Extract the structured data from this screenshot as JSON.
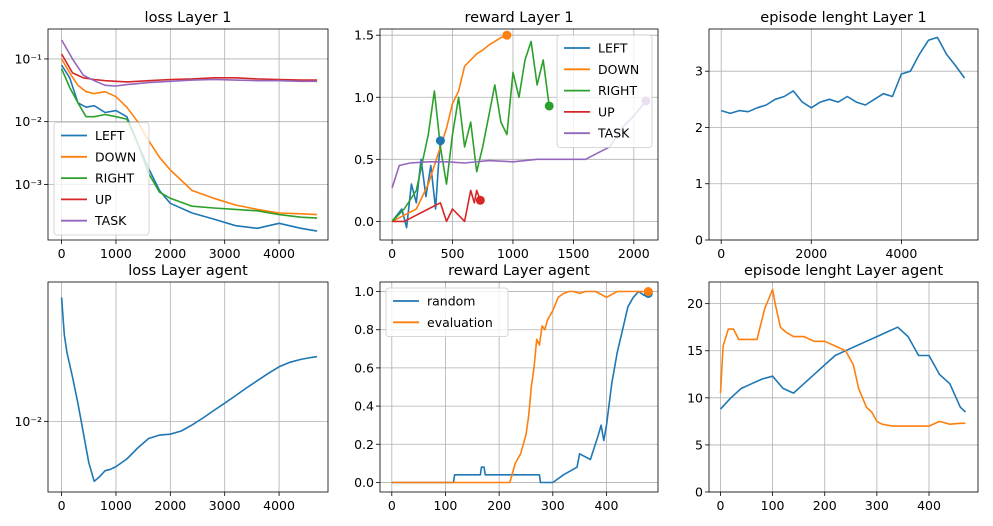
{
  "chart_data": [
    {
      "type": "line",
      "title": "loss Layer 1",
      "xlabel": "",
      "ylabel": "",
      "yscale": "log",
      "xlim": [
        -250,
        4900
      ],
      "ylim": [
        0.00013,
        0.3
      ],
      "xticks": [
        0,
        1000,
        2000,
        3000,
        4000
      ],
      "yticks": [
        0.001,
        0.01,
        0.1
      ],
      "ytick_labels": [
        "10⁻³",
        "10⁻²",
        "10⁻¹"
      ],
      "grid": true,
      "legend": "lower-left",
      "series": [
        {
          "name": "LEFT",
          "color": "#1f77b4",
          "x": [
            0,
            150,
            300,
            450,
            600,
            800,
            1000,
            1200,
            1400,
            1600,
            1800,
            2000,
            2400,
            2800,
            3200,
            3600,
            4000,
            4400,
            4700
          ],
          "y": [
            0.08,
            0.05,
            0.02,
            0.017,
            0.018,
            0.014,
            0.015,
            0.012,
            0.0045,
            0.0018,
            0.0008,
            0.0005,
            0.00035,
            0.00028,
            0.00022,
            0.0002,
            0.00024,
            0.0002,
            0.00018
          ]
        },
        {
          "name": "DOWN",
          "color": "#ff7f0e",
          "x": [
            0,
            150,
            300,
            450,
            600,
            800,
            1000,
            1200,
            1400,
            1600,
            1800,
            2000,
            2400,
            2800,
            3200,
            3600,
            4000,
            4400,
            4700
          ],
          "y": [
            0.1,
            0.06,
            0.038,
            0.03,
            0.028,
            0.03,
            0.025,
            0.017,
            0.01,
            0.005,
            0.0027,
            0.0017,
            0.0008,
            0.0006,
            0.00047,
            0.0004,
            0.00035,
            0.00034,
            0.00033
          ]
        },
        {
          "name": "RIGHT",
          "color": "#2ca02c",
          "x": [
            0,
            150,
            300,
            450,
            600,
            800,
            1000,
            1200,
            1400,
            1600,
            1800,
            2000,
            2400,
            2800,
            3200,
            3600,
            4000,
            4400,
            4700
          ],
          "y": [
            0.07,
            0.035,
            0.02,
            0.012,
            0.012,
            0.013,
            0.012,
            0.011,
            0.0045,
            0.0015,
            0.00075,
            0.0006,
            0.00045,
            0.00042,
            0.0004,
            0.00038,
            0.00033,
            0.0003,
            0.00029
          ]
        },
        {
          "name": "UP",
          "color": "#d62728",
          "x": [
            0,
            200,
            400,
            600,
            800,
            1000,
            1200,
            1600,
            2000,
            2400,
            2800,
            3200,
            3600,
            4000,
            4400,
            4700
          ],
          "y": [
            0.12,
            0.06,
            0.05,
            0.047,
            0.045,
            0.044,
            0.043,
            0.045,
            0.047,
            0.048,
            0.05,
            0.05,
            0.048,
            0.047,
            0.046,
            0.046
          ]
        },
        {
          "name": "TASK",
          "color": "#9467bd",
          "x": [
            0,
            200,
            400,
            600,
            800,
            1000,
            1200,
            1600,
            2000,
            2400,
            2800,
            3200,
            3600,
            4000,
            4400,
            4700
          ],
          "y": [
            0.2,
            0.1,
            0.055,
            0.045,
            0.038,
            0.037,
            0.039,
            0.042,
            0.044,
            0.046,
            0.047,
            0.046,
            0.045,
            0.045,
            0.044,
            0.044
          ]
        }
      ]
    },
    {
      "type": "line",
      "title": "reward Layer 1",
      "xlabel": "",
      "ylabel": "",
      "xlim": [
        -100,
        2200
      ],
      "ylim": [
        -0.15,
        1.55
      ],
      "xticks": [
        0,
        500,
        1000,
        1500,
        2000
      ],
      "yticks": [
        0.0,
        0.5,
        1.0,
        1.5
      ],
      "ytick_labels": [
        "0.0",
        "0.5",
        "1.0",
        "1.5"
      ],
      "grid": true,
      "legend": "top-right",
      "series": [
        {
          "name": "LEFT",
          "color": "#1f77b4",
          "x": [
            0,
            40,
            80,
            120,
            160,
            200,
            240,
            280,
            320,
            360,
            380,
            400
          ],
          "y": [
            0.0,
            0.05,
            0.1,
            -0.05,
            0.3,
            0.15,
            0.5,
            0.2,
            0.45,
            0.1,
            0.4,
            0.65
          ],
          "end_marker": true
        },
        {
          "name": "DOWN",
          "color": "#ff7f0e",
          "x": [
            0,
            100,
            200,
            300,
            400,
            450,
            500,
            550,
            600,
            650,
            700,
            750,
            800,
            850,
            900,
            950
          ],
          "y": [
            0.0,
            0.05,
            0.1,
            0.3,
            0.6,
            0.75,
            0.95,
            1.05,
            1.25,
            1.3,
            1.35,
            1.38,
            1.42,
            1.45,
            1.48,
            1.5
          ],
          "end_marker": true
        },
        {
          "name": "RIGHT",
          "color": "#2ca02c",
          "x": [
            0,
            100,
            200,
            300,
            350,
            400,
            450,
            500,
            550,
            600,
            650,
            700,
            750,
            800,
            850,
            900,
            950,
            1000,
            1050,
            1100,
            1150,
            1200,
            1250,
            1300
          ],
          "y": [
            0.0,
            0.1,
            0.25,
            0.7,
            1.05,
            0.6,
            0.3,
            0.7,
            1.0,
            0.6,
            0.8,
            0.4,
            0.6,
            0.85,
            1.1,
            0.8,
            0.7,
            1.2,
            1.0,
            1.3,
            1.45,
            1.1,
            1.3,
            0.93
          ],
          "end_marker": true
        },
        {
          "name": "UP",
          "color": "#d62728",
          "x": [
            0,
            100,
            200,
            300,
            400,
            450,
            500,
            550,
            600,
            650,
            680,
            700,
            730
          ],
          "y": [
            0.0,
            0.0,
            0.05,
            0.1,
            0.15,
            0.0,
            0.1,
            0.05,
            0.0,
            0.25,
            0.15,
            0.25,
            0.17
          ],
          "end_marker": true
        },
        {
          "name": "TASK",
          "color": "#9467bd",
          "x": [
            0,
            60,
            150,
            300,
            450,
            600,
            800,
            1000,
            1200,
            1400,
            1600,
            1700,
            1800,
            1900,
            2000,
            2100
          ],
          "y": [
            0.27,
            0.45,
            0.47,
            0.48,
            0.48,
            0.47,
            0.49,
            0.48,
            0.5,
            0.5,
            0.5,
            0.55,
            0.6,
            0.75,
            0.85,
            0.97
          ],
          "end_marker": true
        }
      ]
    },
    {
      "type": "line",
      "title": "episode lenght Layer 1",
      "xlabel": "",
      "ylabel": "",
      "xlim": [
        -270,
        5700
      ],
      "ylim": [
        0,
        3.75
      ],
      "xticks": [
        0,
        2000,
        4000
      ],
      "yticks": [
        0,
        1,
        2,
        3
      ],
      "ytick_labels": [
        "0",
        "1",
        "2",
        "3"
      ],
      "grid": true,
      "series": [
        {
          "name": "",
          "color": "#1f77b4",
          "x": [
            0,
            200,
            400,
            600,
            800,
            1000,
            1200,
            1400,
            1600,
            1800,
            2000,
            2200,
            2400,
            2600,
            2800,
            3000,
            3200,
            3400,
            3600,
            3800,
            4000,
            4200,
            4400,
            4600,
            4800,
            5000,
            5200,
            5400
          ],
          "y": [
            2.3,
            2.25,
            2.3,
            2.28,
            2.35,
            2.4,
            2.5,
            2.55,
            2.65,
            2.45,
            2.35,
            2.45,
            2.5,
            2.45,
            2.55,
            2.45,
            2.4,
            2.5,
            2.6,
            2.55,
            2.95,
            3.0,
            3.3,
            3.55,
            3.6,
            3.3,
            3.1,
            2.88
          ]
        }
      ]
    },
    {
      "type": "line",
      "title": "loss Layer agent",
      "xlabel": "",
      "ylabel": "",
      "yscale": "log",
      "xlim": [
        -250,
        4900
      ],
      "ylim": [
        0.0036,
        0.075
      ],
      "xticks": [
        0,
        1000,
        2000,
        3000,
        4000
      ],
      "yticks": [
        0.01
      ],
      "ytick_labels": [
        "10⁻²"
      ],
      "grid": true,
      "series": [
        {
          "name": "",
          "color": "#1f77b4",
          "x": [
            0,
            50,
            100,
            200,
            300,
            400,
            500,
            600,
            700,
            800,
            900,
            1000,
            1200,
            1400,
            1600,
            1800,
            2000,
            2200,
            2400,
            2600,
            2800,
            3000,
            3200,
            3400,
            3600,
            3800,
            4000,
            4200,
            4400,
            4600,
            4700
          ],
          "y": [
            0.06,
            0.035,
            0.027,
            0.019,
            0.013,
            0.0085,
            0.0055,
            0.0042,
            0.0045,
            0.0049,
            0.005,
            0.0052,
            0.0058,
            0.0068,
            0.0078,
            0.0082,
            0.0083,
            0.0087,
            0.0095,
            0.0105,
            0.0117,
            0.013,
            0.0145,
            0.0162,
            0.018,
            0.02,
            0.022,
            0.0235,
            0.0245,
            0.0252,
            0.0255
          ]
        }
      ]
    },
    {
      "type": "line",
      "title": "reward Layer agent",
      "xlabel": "",
      "ylabel": "",
      "xlim": [
        -22,
        496
      ],
      "ylim": [
        -0.05,
        1.05
      ],
      "xticks": [
        0,
        100,
        200,
        300,
        400
      ],
      "yticks": [
        0.0,
        0.2,
        0.4,
        0.6,
        0.8,
        1.0
      ],
      "ytick_labels": [
        "0.0",
        "0.2",
        "0.4",
        "0.6",
        "0.8",
        "1.0"
      ],
      "grid": true,
      "legend": "top-left",
      "series": [
        {
          "name": "random",
          "color": "#1f77b4",
          "x": [
            0,
            115,
            117,
            140,
            165,
            167,
            172,
            174,
            200,
            275,
            277,
            300,
            320,
            345,
            350,
            370,
            385,
            390,
            395,
            400,
            410,
            420,
            430,
            440,
            450,
            460,
            470,
            478
          ],
          "y": [
            0.0,
            0.0,
            0.04,
            0.04,
            0.04,
            0.08,
            0.08,
            0.04,
            0.04,
            0.04,
            0.0,
            0.0,
            0.04,
            0.08,
            0.15,
            0.12,
            0.25,
            0.3,
            0.22,
            0.3,
            0.52,
            0.68,
            0.8,
            0.92,
            0.97,
            1.0,
            0.98,
            0.99
          ],
          "end_marker": true
        },
        {
          "name": "evaluation",
          "color": "#ff7f0e",
          "x": [
            0,
            220,
            230,
            240,
            250,
            255,
            260,
            265,
            270,
            275,
            280,
            285,
            290,
            300,
            310,
            320,
            330,
            340,
            350,
            360,
            380,
            400,
            420,
            440,
            460,
            478
          ],
          "y": [
            0.0,
            0.0,
            0.1,
            0.15,
            0.25,
            0.35,
            0.5,
            0.6,
            0.75,
            0.72,
            0.82,
            0.8,
            0.85,
            0.9,
            0.97,
            0.99,
            1.0,
            1.0,
            0.99,
            1.0,
            1.0,
            0.97,
            1.0,
            1.0,
            1.0,
            1.0
          ],
          "end_marker": true
        }
      ]
    },
    {
      "type": "line",
      "title": "episode lenght Layer agent",
      "xlabel": "",
      "ylabel": "",
      "xlim": [
        -22,
        494
      ],
      "ylim": [
        0,
        22.3
      ],
      "xticks": [
        0,
        100,
        200,
        300,
        400
      ],
      "yticks": [
        0,
        5,
        10,
        15,
        20
      ],
      "ytick_labels": [
        "0",
        "5",
        "10",
        "15",
        "20"
      ],
      "grid": true,
      "series": [
        {
          "name": "",
          "color": "#1f77b4",
          "x": [
            0,
            20,
            40,
            60,
            80,
            100,
            120,
            140,
            160,
            180,
            200,
            220,
            240,
            260,
            280,
            300,
            320,
            340,
            360,
            380,
            400,
            420,
            440,
            460,
            470
          ],
          "y": [
            8.8,
            10.0,
            11.0,
            11.5,
            12.0,
            12.3,
            11.0,
            10.5,
            11.5,
            12.5,
            13.5,
            14.5,
            15.0,
            15.5,
            16.0,
            16.5,
            17.0,
            17.5,
            16.5,
            14.5,
            14.5,
            12.5,
            11.5,
            9.0,
            8.5
          ]
        },
        {
          "name": "",
          "color": "#ff7f0e",
          "x": [
            0,
            5,
            15,
            25,
            35,
            45,
            55,
            70,
            85,
            100,
            105,
            115,
            125,
            140,
            160,
            180,
            200,
            220,
            240,
            255,
            265,
            280,
            290,
            300,
            310,
            330,
            360,
            380,
            400,
            420,
            440,
            460,
            470
          ],
          "y": [
            10.5,
            15.5,
            17.3,
            17.3,
            16.2,
            16.2,
            16.2,
            16.2,
            19.5,
            21.5,
            20.0,
            17.5,
            17.0,
            16.5,
            16.5,
            16.0,
            16.0,
            15.5,
            15.0,
            13.5,
            11.0,
            9.0,
            8.5,
            7.5,
            7.2,
            7.0,
            7.0,
            7.0,
            7.0,
            7.5,
            7.2,
            7.3,
            7.3
          ]
        }
      ]
    }
  ]
}
